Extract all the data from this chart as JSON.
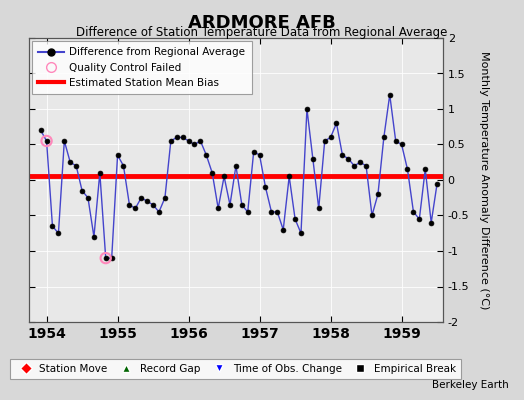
{
  "title": "ARDMORE AFB",
  "subtitle": "Difference of Station Temperature Data from Regional Average",
  "ylabel": "Monthly Temperature Anomaly Difference (°C)",
  "credit": "Berkeley Earth",
  "ylim": [
    -2,
    2
  ],
  "bias_value": 0.05,
  "plot_bg": "#e8e8e8",
  "fig_bg": "#d8d8d8",
  "x_values": [
    1953.917,
    1954.0,
    1954.083,
    1954.167,
    1954.25,
    1954.333,
    1954.417,
    1954.5,
    1954.583,
    1954.667,
    1954.75,
    1954.833,
    1954.917,
    1955.0,
    1955.083,
    1955.167,
    1955.25,
    1955.333,
    1955.417,
    1955.5,
    1955.583,
    1955.667,
    1955.75,
    1955.833,
    1955.917,
    1956.0,
    1956.083,
    1956.167,
    1956.25,
    1956.333,
    1956.417,
    1956.5,
    1956.583,
    1956.667,
    1956.75,
    1956.833,
    1956.917,
    1957.0,
    1957.083,
    1957.167,
    1957.25,
    1957.333,
    1957.417,
    1957.5,
    1957.583,
    1957.667,
    1957.75,
    1957.833,
    1957.917,
    1958.0,
    1958.083,
    1958.167,
    1958.25,
    1958.333,
    1958.417,
    1958.5,
    1958.583,
    1958.667,
    1958.75,
    1958.833,
    1958.917,
    1959.0,
    1959.083,
    1959.167,
    1959.25,
    1959.333,
    1959.417,
    1959.5
  ],
  "y_values": [
    0.7,
    0.55,
    -0.65,
    -0.75,
    0.55,
    0.25,
    0.2,
    -0.15,
    -0.25,
    -0.8,
    0.1,
    -1.1,
    -1.1,
    0.35,
    0.2,
    -0.35,
    -0.4,
    -0.25,
    -0.3,
    -0.35,
    -0.45,
    -0.25,
    0.55,
    0.6,
    0.6,
    0.55,
    0.5,
    0.55,
    0.35,
    0.1,
    -0.4,
    0.05,
    -0.35,
    0.2,
    -0.35,
    -0.45,
    0.4,
    0.35,
    -0.1,
    -0.45,
    -0.45,
    -0.7,
    0.05,
    -0.55,
    -0.75,
    1.0,
    0.3,
    -0.4,
    0.55,
    0.6,
    0.8,
    0.35,
    0.3,
    0.2,
    0.25,
    0.2,
    -0.5,
    -0.2,
    0.6,
    1.2,
    0.55,
    0.5,
    0.15,
    -0.45,
    -0.55,
    0.15,
    -0.6,
    -0.05
  ],
  "qc_failed_indices": [
    1,
    11
  ],
  "line_color": "#4444cc",
  "dot_color": "#000000",
  "bias_color": "#ff0000",
  "qc_color": "#ff88bb",
  "xticks": [
    1954,
    1955,
    1956,
    1957,
    1958,
    1959
  ],
  "yticks": [
    -2,
    -1.5,
    -1,
    -0.5,
    0,
    0.5,
    1,
    1.5,
    2
  ]
}
